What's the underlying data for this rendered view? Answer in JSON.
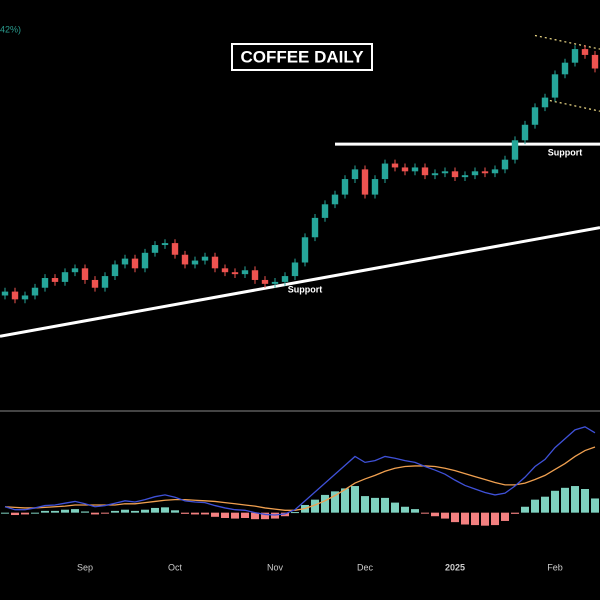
{
  "chart_data": {
    "type": "candlestick",
    "title": "COFFEE DAILY",
    "legend_fragment": "42%)",
    "categories": [
      null,
      null,
      null,
      null,
      null,
      null,
      null,
      null,
      "Sep",
      null,
      null,
      null,
      null,
      null,
      null,
      null,
      null,
      "Oct",
      null,
      null,
      null,
      null,
      null,
      null,
      null,
      null,
      null,
      "Nov",
      null,
      null,
      null,
      null,
      null,
      null,
      null,
      null,
      "Dec",
      null,
      null,
      null,
      null,
      null,
      null,
      null,
      null,
      "2025",
      null,
      null,
      null,
      null,
      null,
      null,
      null,
      null,
      null,
      "Feb",
      null,
      null,
      null,
      null
    ],
    "open": [
      238,
      240,
      236,
      238,
      242,
      247,
      245,
      250,
      252,
      246,
      242,
      248,
      254,
      257,
      252,
      260,
      264,
      265,
      259,
      254,
      256,
      258,
      252,
      250,
      249,
      251,
      246,
      244,
      245,
      248,
      255,
      268,
      278,
      285,
      290,
      298,
      303,
      290,
      298,
      306,
      304,
      302,
      304,
      300,
      301,
      302,
      299,
      300,
      302,
      301,
      303,
      308,
      318,
      326,
      335,
      340,
      352,
      358,
      365,
      362
    ],
    "high": [
      242,
      242,
      240,
      244,
      249,
      249,
      252,
      254,
      254,
      248,
      250,
      256,
      259,
      259,
      262,
      266,
      267,
      267,
      261,
      258,
      260,
      260,
      254,
      252,
      253,
      253,
      248,
      247,
      250,
      257,
      270,
      280,
      287,
      292,
      300,
      305,
      305,
      300,
      308,
      308,
      306,
      306,
      306,
      303,
      304,
      304,
      302,
      304,
      304,
      305,
      310,
      320,
      328,
      337,
      342,
      354,
      360,
      367,
      367,
      364
    ],
    "low": [
      236,
      234,
      234,
      236,
      240,
      243,
      243,
      248,
      244,
      240,
      240,
      246,
      252,
      250,
      250,
      258,
      262,
      257,
      252,
      252,
      254,
      250,
      248,
      247,
      247,
      244,
      242,
      242,
      243,
      246,
      253,
      266,
      276,
      283,
      288,
      296,
      288,
      288,
      296,
      302,
      300,
      300,
      298,
      298,
      299,
      297,
      297,
      298,
      299,
      299,
      301,
      306,
      316,
      324,
      333,
      338,
      350,
      356,
      360,
      353
    ],
    "close": [
      240,
      236,
      238,
      242,
      247,
      245,
      250,
      252,
      246,
      242,
      248,
      254,
      257,
      252,
      260,
      264,
      265,
      259,
      254,
      256,
      258,
      252,
      250,
      249,
      251,
      246,
      244,
      245,
      248,
      255,
      268,
      278,
      285,
      290,
      298,
      303,
      290,
      298,
      306,
      304,
      302,
      304,
      300,
      301,
      302,
      299,
      300,
      302,
      301,
      303,
      308,
      318,
      326,
      335,
      340,
      352,
      358,
      365,
      362,
      355
    ],
    "up_color": "#26a69a",
    "down_color": "#ef5350",
    "ylim": [
      180,
      380
    ],
    "trendlines": [
      {
        "text": "Support",
        "from": [
          0,
          217
        ],
        "to": [
          59,
          273
        ],
        "color": "#ffffff"
      },
      {
        "text": "Support",
        "from": [
          33,
          316
        ],
        "to": [
          59,
          316
        ],
        "color": "#ffffff"
      }
    ],
    "channel": [
      {
        "from": [
          53,
          372
        ],
        "to": [
          59,
          365
        ],
        "color": "#f5e08a"
      },
      {
        "from": [
          54,
          339
        ],
        "to": [
          59,
          333
        ],
        "color": "#f5e08a"
      }
    ],
    "macd": {
      "ylim": [
        -8,
        16
      ],
      "macd_color": "#3f51d8",
      "signal_color": "#f0a050",
      "macd": [
        1,
        0.5,
        0.5,
        0.8,
        1.2,
        1.3,
        1.6,
        1.9,
        1.5,
        1,
        1.2,
        1.6,
        2,
        1.8,
        2.2,
        2.7,
        3,
        2.6,
        2,
        1.8,
        1.7,
        1.2,
        0.8,
        0.5,
        0.4,
        0,
        -0.3,
        -0.4,
        -0.2,
        0.5,
        2,
        3.5,
        5,
        6.5,
        8,
        9.5,
        8.5,
        8.8,
        9.5,
        9.2,
        8.8,
        8.5,
        7.8,
        7.2,
        6.5,
        5.5,
        4.6,
        4,
        3.4,
        3,
        3.3,
        4.5,
        6,
        7.8,
        9,
        11,
        12.5,
        14,
        14.5,
        13.5
      ],
      "signal": [
        1,
        0.9,
        0.8,
        0.8,
        0.9,
        1,
        1.1,
        1.3,
        1.3,
        1.3,
        1.3,
        1.3,
        1.5,
        1.5,
        1.7,
        1.9,
        2.1,
        2.2,
        2.2,
        2.1,
        2,
        1.9,
        1.7,
        1.5,
        1.3,
        1.1,
        0.8,
        0.6,
        0.4,
        0.4,
        0.7,
        1.3,
        2,
        2.9,
        3.9,
        5,
        5.7,
        6.3,
        7,
        7.5,
        7.8,
        7.9,
        7.9,
        7.8,
        7.5,
        7.1,
        6.6,
        6.1,
        5.6,
        5.1,
        4.7,
        4.7,
        5,
        5.6,
        6.3,
        7.3,
        8.3,
        9.5,
        10.5,
        11.1
      ],
      "histogram": [
        0,
        -0.4,
        -0.3,
        0,
        0.3,
        0.3,
        0.5,
        0.6,
        0.2,
        -0.3,
        -0.1,
        0.3,
        0.5,
        0.3,
        0.5,
        0.8,
        0.9,
        0.4,
        -0.2,
        -0.3,
        -0.3,
        -0.7,
        -0.9,
        -1,
        -0.9,
        -1.1,
        -1.1,
        -1,
        -0.6,
        0.1,
        1.3,
        2.2,
        3,
        3.6,
        4.1,
        4.5,
        2.8,
        2.5,
        2.5,
        1.7,
        1,
        0.6,
        -0.1,
        -0.6,
        -1,
        -1.6,
        -2,
        -2.1,
        -2.2,
        -2.1,
        -1.4,
        -0.2,
        1,
        2.2,
        2.7,
        3.7,
        4.2,
        4.5,
        4,
        2.4
      ],
      "pos_color": "#7fd1bf",
      "neg_color": "#f28080"
    }
  }
}
